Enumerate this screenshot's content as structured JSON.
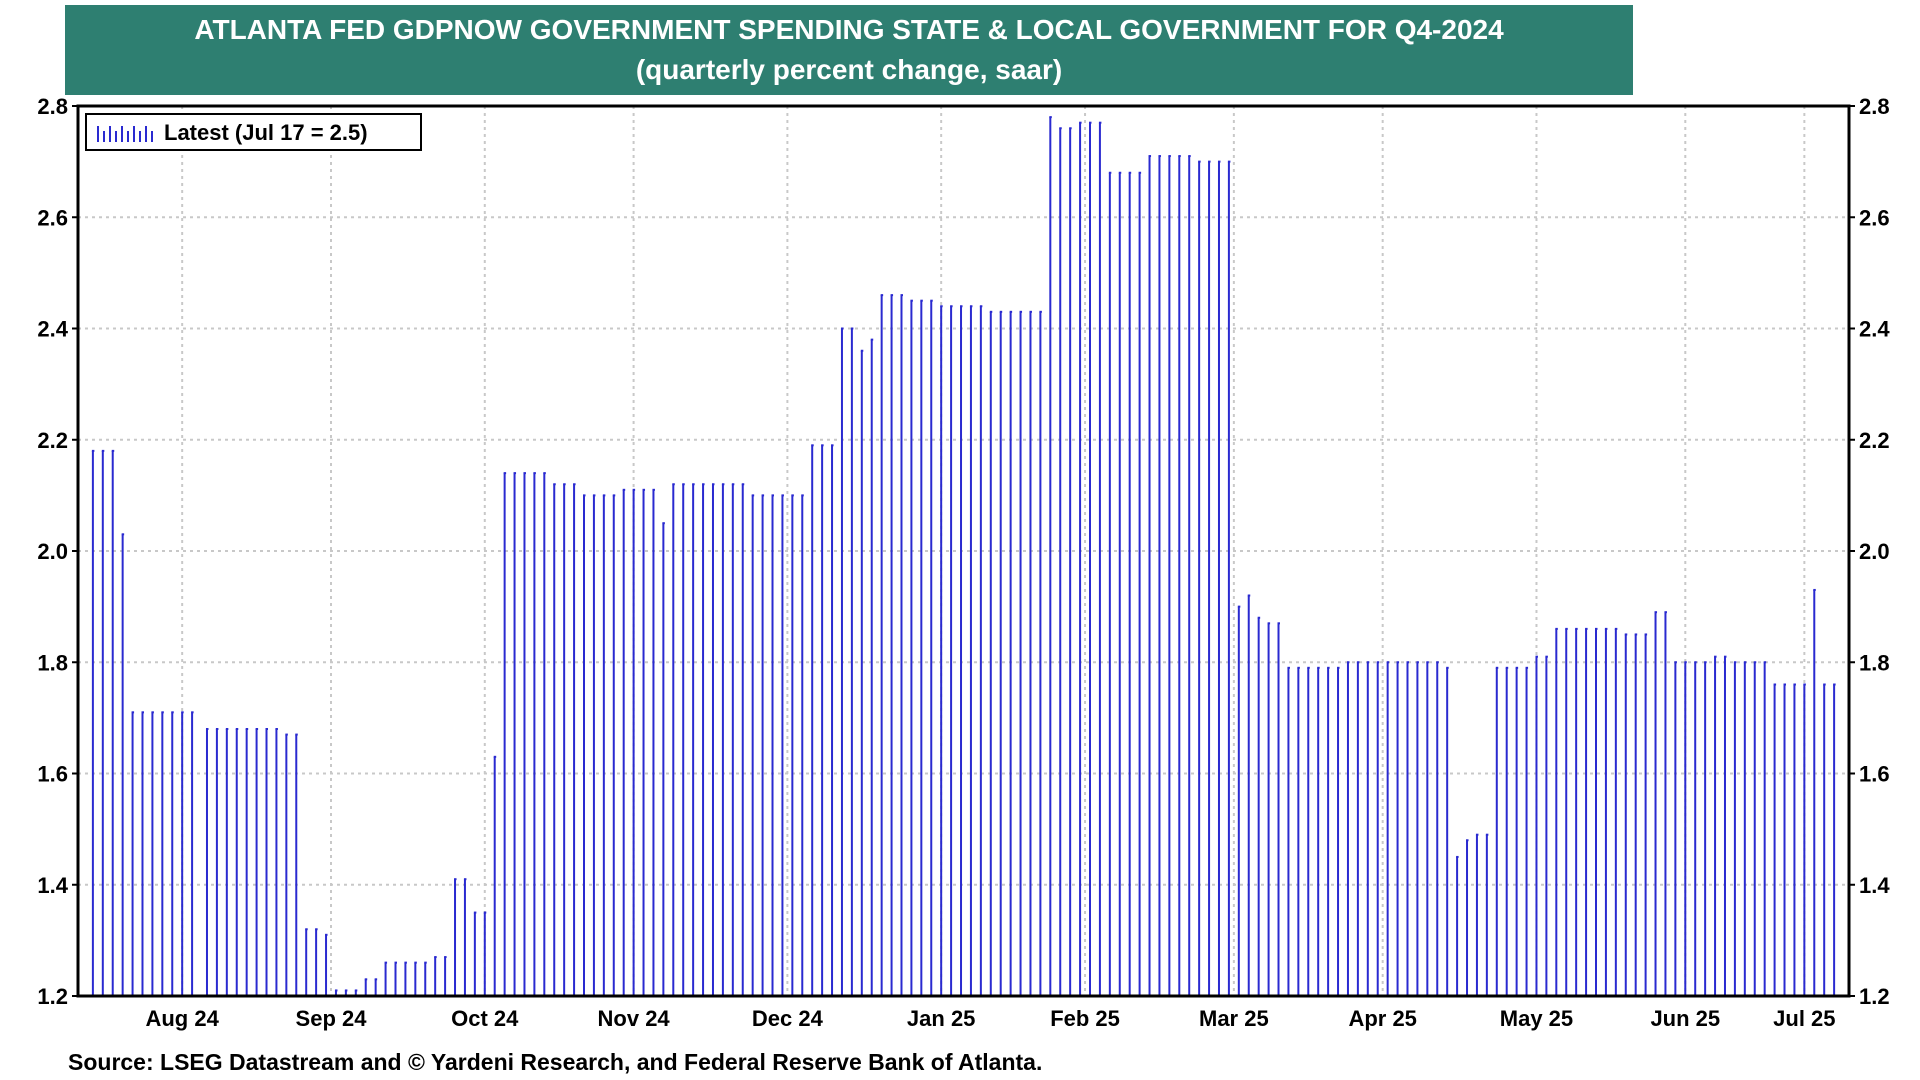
{
  "colors": {
    "banner": "#2e7f71",
    "bars": "#2a2ad0",
    "grid": "#c8c8c8",
    "axis": "#000000"
  },
  "header": {
    "title": "ATLANTA FED GDPNOW GOVERNMENT SPENDING STATE & LOCAL GOVERNMENT  FOR Q4-2024",
    "subtitle": "(quarterly percent change, saar)"
  },
  "footer": {
    "source": "Source: LSEG Datastream and © Yardeni Research, and Federal Reserve Bank of Atlanta."
  },
  "chart_data": {
    "type": "bar",
    "title": "ATLANTA FED GDPNOW GOVERNMENT SPENDING STATE & LOCAL GOVERNMENT  FOR Q4-2024",
    "subtitle": "(quarterly percent change, saar)",
    "ylim": [
      1.2,
      2.8
    ],
    "y_ticks": [
      "1.2",
      "1.4",
      "1.6",
      "1.8",
      "2.0",
      "2.2",
      "2.4",
      "2.6",
      "2.8"
    ],
    "y_axis_both_sides": true,
    "x_range": [
      "2024-07-26",
      "2025-07-18"
    ],
    "x_tick_labels": [
      {
        "label": "Aug 24",
        "date": "2024-08-16"
      },
      {
        "label": "Sep 24",
        "date": "2024-09-15"
      },
      {
        "label": "Oct 24",
        "date": "2024-10-16"
      },
      {
        "label": "Nov 24",
        "date": "2024-11-15"
      },
      {
        "label": "Dec 24",
        "date": "2024-12-16"
      },
      {
        "label": "Jan 25",
        "date": "2025-01-16"
      },
      {
        "label": "Feb 25",
        "date": "2025-02-14"
      },
      {
        "label": "Mar 25",
        "date": "2025-03-16"
      },
      {
        "label": "Apr 25",
        "date": "2025-04-15"
      },
      {
        "label": "May 25",
        "date": "2025-05-16"
      },
      {
        "label": "Jun 25",
        "date": "2025-06-15"
      },
      {
        "label": "Jul 25",
        "date": "2025-07-09"
      }
    ],
    "grid": true,
    "legend": {
      "position": "top-left",
      "entries": [
        "Latest (Jul 17 = 2.5)"
      ]
    },
    "series": [
      {
        "name": "Latest (Jul 17 = 2.5)",
        "color": "#2a2ad0",
        "points": [
          [
            "2024-07-29",
            2.18
          ],
          [
            "2024-07-31",
            2.18
          ],
          [
            "2024-08-02",
            2.18
          ],
          [
            "2024-08-04",
            2.03
          ],
          [
            "2024-08-06",
            1.71
          ],
          [
            "2024-08-08",
            1.71
          ],
          [
            "2024-08-10",
            1.71
          ],
          [
            "2024-08-12",
            1.71
          ],
          [
            "2024-08-14",
            1.71
          ],
          [
            "2024-08-16",
            1.71
          ],
          [
            "2024-08-18",
            1.71
          ],
          [
            "2024-08-21",
            1.68
          ],
          [
            "2024-08-23",
            1.68
          ],
          [
            "2024-08-25",
            1.68
          ],
          [
            "2024-08-27",
            1.68
          ],
          [
            "2024-08-29",
            1.68
          ],
          [
            "2024-08-31",
            1.68
          ],
          [
            "2024-09-02",
            1.68
          ],
          [
            "2024-09-04",
            1.68
          ],
          [
            "2024-09-06",
            1.67
          ],
          [
            "2024-09-08",
            1.67
          ],
          [
            "2024-09-10",
            1.32
          ],
          [
            "2024-09-12",
            1.32
          ],
          [
            "2024-09-14",
            1.31
          ],
          [
            "2024-09-16",
            1.21
          ],
          [
            "2024-09-18",
            1.21
          ],
          [
            "2024-09-20",
            1.21
          ],
          [
            "2024-09-22",
            1.23
          ],
          [
            "2024-09-24",
            1.23
          ],
          [
            "2024-09-26",
            1.26
          ],
          [
            "2024-09-28",
            1.26
          ],
          [
            "2024-09-30",
            1.26
          ],
          [
            "2024-10-02",
            1.26
          ],
          [
            "2024-10-04",
            1.26
          ],
          [
            "2024-10-06",
            1.27
          ],
          [
            "2024-10-08",
            1.27
          ],
          [
            "2024-10-10",
            1.41
          ],
          [
            "2024-10-12",
            1.41
          ],
          [
            "2024-10-14",
            1.35
          ],
          [
            "2024-10-16",
            1.35
          ],
          [
            "2024-10-18",
            1.63
          ],
          [
            "2024-10-20",
            2.14
          ],
          [
            "2024-10-22",
            2.14
          ],
          [
            "2024-10-24",
            2.14
          ],
          [
            "2024-10-26",
            2.14
          ],
          [
            "2024-10-28",
            2.14
          ],
          [
            "2024-10-30",
            2.12
          ],
          [
            "2024-11-01",
            2.12
          ],
          [
            "2024-11-03",
            2.12
          ],
          [
            "2024-11-05",
            2.1
          ],
          [
            "2024-11-07",
            2.1
          ],
          [
            "2024-11-09",
            2.1
          ],
          [
            "2024-11-11",
            2.1
          ],
          [
            "2024-11-13",
            2.11
          ],
          [
            "2024-11-15",
            2.11
          ],
          [
            "2024-11-17",
            2.11
          ],
          [
            "2024-11-19",
            2.11
          ],
          [
            "2024-11-21",
            2.05
          ],
          [
            "2024-11-23",
            2.12
          ],
          [
            "2024-11-25",
            2.12
          ],
          [
            "2024-11-27",
            2.12
          ],
          [
            "2024-11-29",
            2.12
          ],
          [
            "2024-12-01",
            2.12
          ],
          [
            "2024-12-03",
            2.12
          ],
          [
            "2024-12-05",
            2.12
          ],
          [
            "2024-12-07",
            2.12
          ],
          [
            "2024-12-09",
            2.1
          ],
          [
            "2024-12-11",
            2.1
          ],
          [
            "2024-12-13",
            2.1
          ],
          [
            "2024-12-15",
            2.1
          ],
          [
            "2024-12-17",
            2.1
          ],
          [
            "2024-12-19",
            2.1
          ],
          [
            "2024-12-21",
            2.19
          ],
          [
            "2024-12-23",
            2.19
          ],
          [
            "2024-12-25",
            2.19
          ],
          [
            "2024-12-27",
            2.4
          ],
          [
            "2024-12-29",
            2.4
          ],
          [
            "2024-12-31",
            2.36
          ],
          [
            "2025-01-02",
            2.38
          ],
          [
            "2025-01-04",
            2.46
          ],
          [
            "2025-01-06",
            2.46
          ],
          [
            "2025-01-08",
            2.46
          ],
          [
            "2025-01-10",
            2.45
          ],
          [
            "2025-01-12",
            2.45
          ],
          [
            "2025-01-14",
            2.45
          ],
          [
            "2025-01-16",
            2.44
          ],
          [
            "2025-01-18",
            2.44
          ],
          [
            "2025-01-20",
            2.44
          ],
          [
            "2025-01-22",
            2.44
          ],
          [
            "2025-01-24",
            2.44
          ],
          [
            "2025-01-26",
            2.43
          ],
          [
            "2025-01-28",
            2.43
          ],
          [
            "2025-01-30",
            2.43
          ],
          [
            "2025-02-01",
            2.43
          ],
          [
            "2025-02-03",
            2.43
          ],
          [
            "2025-02-05",
            2.43
          ],
          [
            "2025-02-07",
            2.78
          ],
          [
            "2025-02-09",
            2.76
          ],
          [
            "2025-02-11",
            2.76
          ],
          [
            "2025-02-13",
            2.77
          ],
          [
            "2025-02-15",
            2.77
          ],
          [
            "2025-02-17",
            2.77
          ],
          [
            "2025-02-19",
            2.68
          ],
          [
            "2025-02-21",
            2.68
          ],
          [
            "2025-02-23",
            2.68
          ],
          [
            "2025-02-25",
            2.68
          ],
          [
            "2025-02-27",
            2.71
          ],
          [
            "2025-03-01",
            2.71
          ],
          [
            "2025-03-03",
            2.71
          ],
          [
            "2025-03-05",
            2.71
          ],
          [
            "2025-03-07",
            2.71
          ],
          [
            "2025-03-09",
            2.7
          ],
          [
            "2025-03-11",
            2.7
          ],
          [
            "2025-03-13",
            2.7
          ],
          [
            "2025-03-15",
            2.7
          ],
          [
            "2025-03-17",
            1.9
          ],
          [
            "2025-03-19",
            1.92
          ],
          [
            "2025-03-21",
            1.88
          ],
          [
            "2025-03-23",
            1.87
          ],
          [
            "2025-03-25",
            1.87
          ],
          [
            "2025-03-27",
            1.79
          ],
          [
            "2025-03-29",
            1.79
          ],
          [
            "2025-03-31",
            1.79
          ],
          [
            "2025-04-02",
            1.79
          ],
          [
            "2025-04-04",
            1.79
          ],
          [
            "2025-04-06",
            1.79
          ],
          [
            "2025-04-08",
            1.8
          ],
          [
            "2025-04-10",
            1.8
          ],
          [
            "2025-04-12",
            1.8
          ],
          [
            "2025-04-14",
            1.8
          ],
          [
            "2025-04-16",
            1.8
          ],
          [
            "2025-04-18",
            1.8
          ],
          [
            "2025-04-20",
            1.8
          ],
          [
            "2025-04-22",
            1.8
          ],
          [
            "2025-04-24",
            1.8
          ],
          [
            "2025-04-26",
            1.8
          ],
          [
            "2025-04-28",
            1.79
          ],
          [
            "2025-04-30",
            1.45
          ],
          [
            "2025-05-02",
            1.48
          ],
          [
            "2025-05-04",
            1.49
          ],
          [
            "2025-05-06",
            1.49
          ],
          [
            "2025-05-08",
            1.79
          ],
          [
            "2025-05-10",
            1.79
          ],
          [
            "2025-05-12",
            1.79
          ],
          [
            "2025-05-14",
            1.79
          ],
          [
            "2025-05-16",
            1.81
          ],
          [
            "2025-05-18",
            1.81
          ],
          [
            "2025-05-20",
            1.86
          ],
          [
            "2025-05-22",
            1.86
          ],
          [
            "2025-05-24",
            1.86
          ],
          [
            "2025-05-26",
            1.86
          ],
          [
            "2025-05-28",
            1.86
          ],
          [
            "2025-05-30",
            1.86
          ],
          [
            "2025-06-01",
            1.86
          ],
          [
            "2025-06-03",
            1.85
          ],
          [
            "2025-06-05",
            1.85
          ],
          [
            "2025-06-07",
            1.85
          ],
          [
            "2025-06-09",
            1.89
          ],
          [
            "2025-06-11",
            1.89
          ],
          [
            "2025-06-13",
            1.8
          ],
          [
            "2025-06-15",
            1.8
          ],
          [
            "2025-06-17",
            1.8
          ],
          [
            "2025-06-19",
            1.8
          ],
          [
            "2025-06-21",
            1.81
          ],
          [
            "2025-06-23",
            1.81
          ],
          [
            "2025-06-25",
            1.8
          ],
          [
            "2025-06-27",
            1.8
          ],
          [
            "2025-06-29",
            1.8
          ],
          [
            "2025-07-01",
            1.8
          ],
          [
            "2025-07-03",
            1.76
          ],
          [
            "2025-07-05",
            1.76
          ],
          [
            "2025-07-07",
            1.76
          ],
          [
            "2025-07-09",
            1.76
          ],
          [
            "2025-07-11",
            1.93
          ],
          [
            "2025-07-13",
            1.76
          ],
          [
            "2025-07-15",
            1.76
          ]
        ]
      }
    ]
  }
}
